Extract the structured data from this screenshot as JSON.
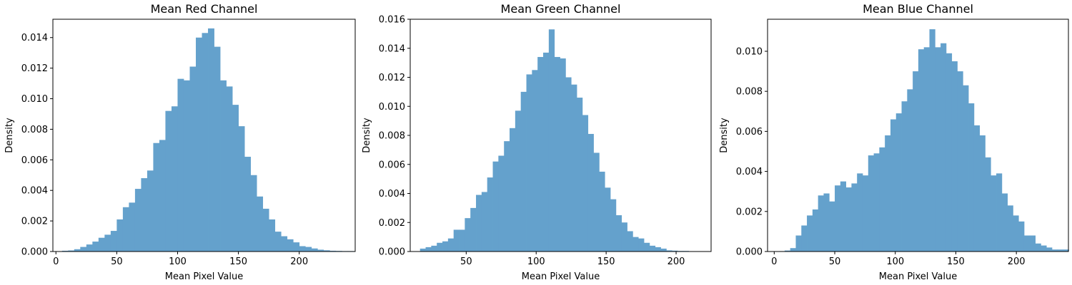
{
  "chart_data": [
    {
      "type": "bar",
      "title": "Mean Red Channel",
      "xlabel": "Mean Pixel Value",
      "ylabel": "Density",
      "color": "#64a1cc",
      "xlim": [
        -2.5,
        246
      ],
      "ylim": [
        0,
        0.0152
      ],
      "xticks": [
        0,
        50,
        100,
        150,
        200
      ],
      "yticks": [
        0.0,
        0.002,
        0.004,
        0.006,
        0.008,
        0.01,
        0.012,
        0.014
      ],
      "bin_start": 5,
      "bin_width": 5,
      "values": [
        5e-05,
        7e-05,
        0.00015,
        0.0003,
        0.00046,
        0.00065,
        0.0009,
        0.0011,
        0.00135,
        0.0021,
        0.0029,
        0.0032,
        0.0041,
        0.0048,
        0.0053,
        0.0071,
        0.0073,
        0.0092,
        0.0095,
        0.0113,
        0.0112,
        0.0121,
        0.014,
        0.0143,
        0.0146,
        0.0134,
        0.0112,
        0.0108,
        0.0096,
        0.0082,
        0.0062,
        0.005,
        0.0036,
        0.0028,
        0.0021,
        0.0013,
        0.001,
        0.0008,
        0.0006,
        0.00035,
        0.0003,
        0.0002,
        0.00012,
        8e-05,
        5e-05,
        4e-05,
        3e-05,
        3e-05
      ]
    },
    {
      "type": "bar",
      "title": "Mean Green Channel",
      "xlabel": "Mean Pixel Value",
      "ylabel": "Density",
      "color": "#64a1cc",
      "xlim": [
        10,
        225
      ],
      "ylim": [
        0,
        0.016
      ],
      "xticks": [
        50,
        100,
        150,
        200
      ],
      "yticks": [
        0.0,
        0.002,
        0.004,
        0.006,
        0.008,
        0.01,
        0.012,
        0.014,
        0.016
      ],
      "bin_start": 17,
      "bin_width": 4,
      "values": [
        0.0002,
        0.0003,
        0.0004,
        0.0006,
        0.0007,
        0.0009,
        0.0015,
        0.0015,
        0.0023,
        0.003,
        0.0039,
        0.0041,
        0.0051,
        0.0062,
        0.0066,
        0.0076,
        0.0085,
        0.0097,
        0.011,
        0.0122,
        0.0125,
        0.0134,
        0.0137,
        0.0153,
        0.0134,
        0.0133,
        0.012,
        0.0115,
        0.0106,
        0.0094,
        0.0081,
        0.0068,
        0.0055,
        0.0044,
        0.0036,
        0.0025,
        0.002,
        0.0014,
        0.001,
        0.0009,
        0.0006,
        0.0004,
        0.0003,
        0.0002,
        8e-05,
        6e-05,
        4e-05,
        4e-05,
        2e-05,
        2e-05
      ]
    },
    {
      "type": "bar",
      "title": "Mean Blue Channel",
      "xlabel": "Mean Pixel Value",
      "ylabel": "Density",
      "color": "#64a1cc",
      "xlim": [
        -5.5,
        243
      ],
      "ylim": [
        0,
        0.0116
      ],
      "xticks": [
        0,
        50,
        100,
        150,
        200
      ],
      "yticks": [
        0.0,
        0.002,
        0.004,
        0.006,
        0.008,
        0.01
      ],
      "bin_start": 4,
      "bin_width": 4.6,
      "values": [
        2e-05,
        5e-05,
        0.00017,
        0.0008,
        0.0013,
        0.0018,
        0.0021,
        0.0028,
        0.0029,
        0.0025,
        0.0033,
        0.0035,
        0.0032,
        0.0034,
        0.0039,
        0.0038,
        0.0048,
        0.0049,
        0.0052,
        0.0058,
        0.0066,
        0.0069,
        0.0075,
        0.0081,
        0.009,
        0.0101,
        0.0102,
        0.0111,
        0.0102,
        0.0104,
        0.0099,
        0.0095,
        0.009,
        0.0083,
        0.0074,
        0.0063,
        0.0058,
        0.0047,
        0.0038,
        0.0039,
        0.0029,
        0.0023,
        0.0018,
        0.0015,
        0.0008,
        0.0008,
        0.0004,
        0.0003,
        0.0002,
        0.0001,
        0.0001,
        0.0001
      ]
    }
  ]
}
